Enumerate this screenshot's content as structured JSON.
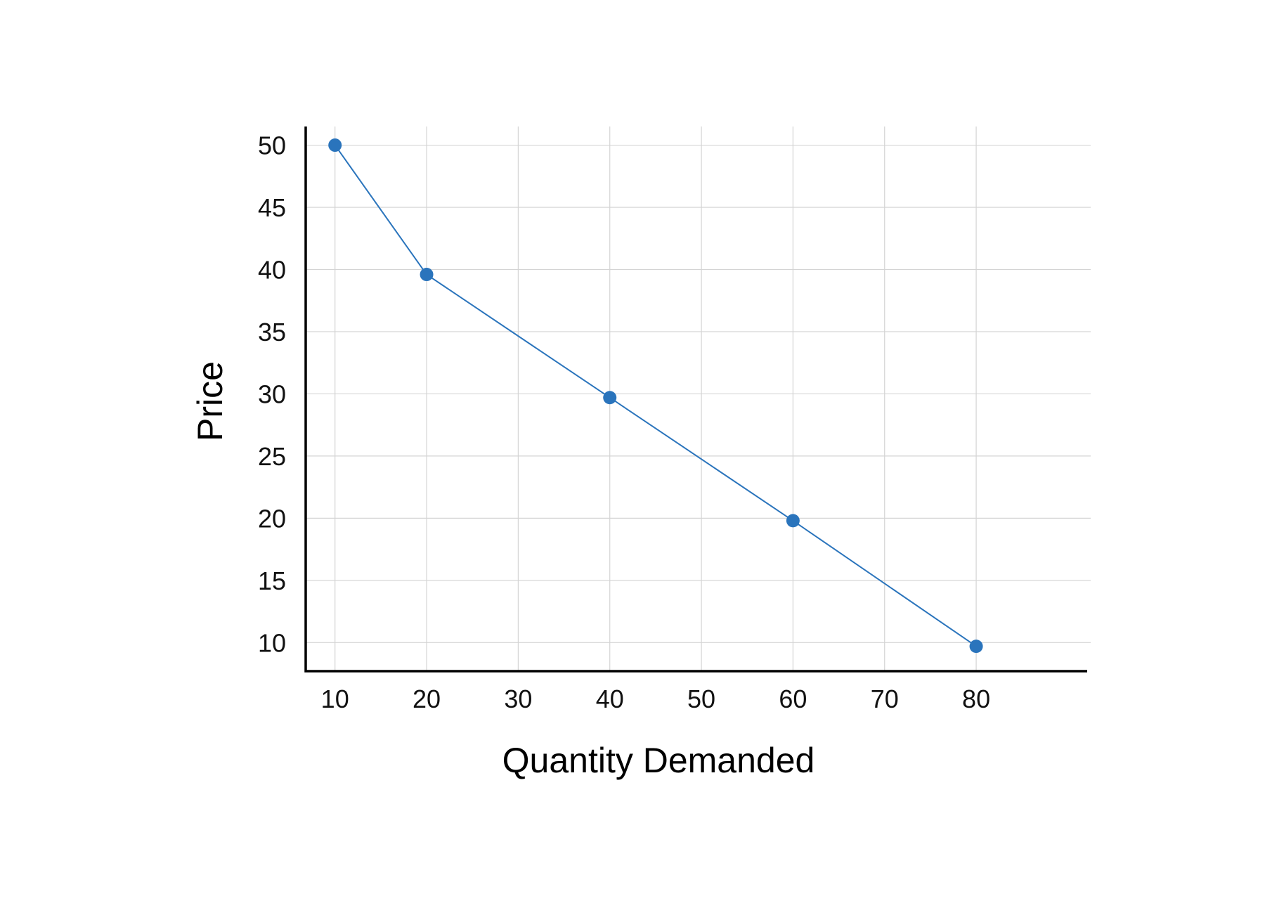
{
  "chart_data": {
    "type": "line",
    "title": "",
    "xlabel": "Quantity Demanded",
    "ylabel": "Price",
    "x_ticks": [
      10,
      20,
      30,
      40,
      50,
      60,
      70,
      80
    ],
    "y_ticks": [
      10,
      15,
      20,
      25,
      30,
      35,
      40,
      45,
      50
    ],
    "xlim": [
      6.8,
      92.5
    ],
    "ylim": [
      7.7,
      51.5
    ],
    "grid": true,
    "legend": "none",
    "series": [
      {
        "color": "#2a74bc",
        "x": [
          10,
          20,
          40,
          60,
          80
        ],
        "y": [
          50,
          39.6,
          29.7,
          19.8,
          9.7
        ]
      }
    ]
  }
}
